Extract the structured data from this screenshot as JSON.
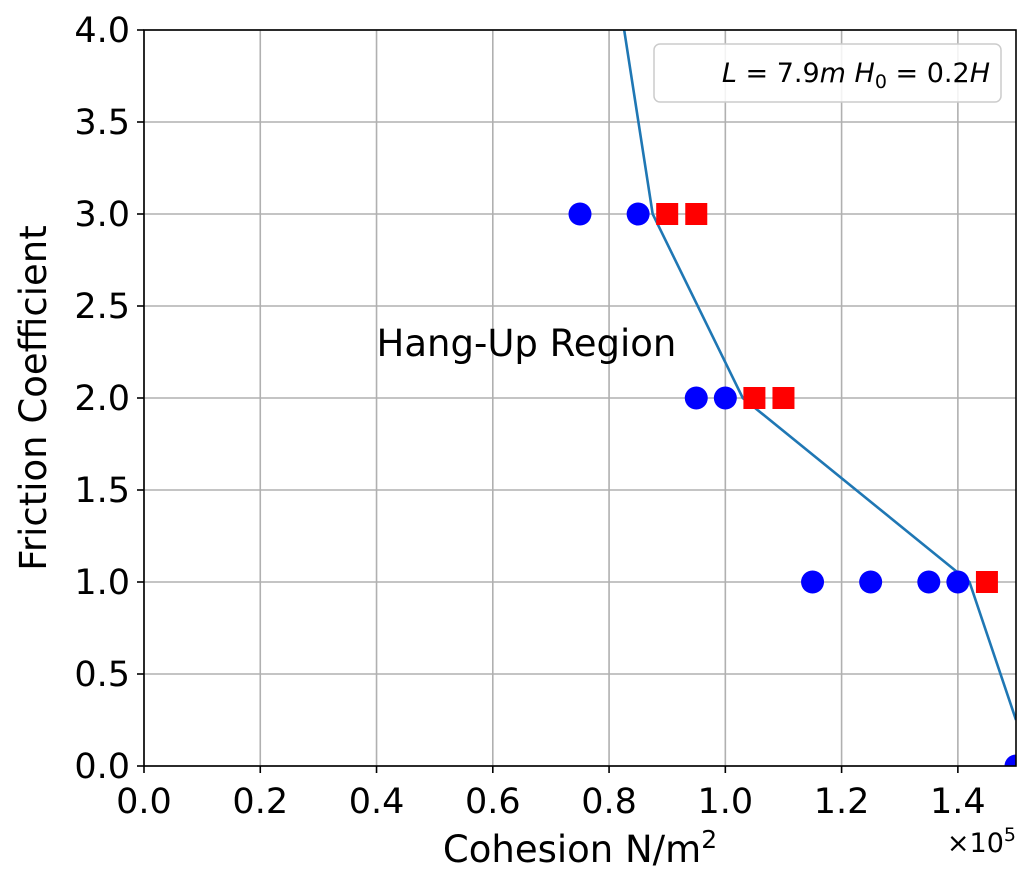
{
  "chart_data": {
    "type": "scatter",
    "xlabel_main": "Cohesion N/m",
    "xlabel_sup": "2",
    "ylabel": "Friction Coefficient",
    "x_multiplier_base": "×10",
    "x_multiplier_exp": "5",
    "xlim": [
      0,
      1.5
    ],
    "ylim": [
      0,
      4.0
    ],
    "x_ticks": [
      0.0,
      0.2,
      0.4,
      0.6,
      0.8,
      1.0,
      1.2,
      1.4
    ],
    "x_tick_labels": [
      "0.0",
      "0.2",
      "0.4",
      "0.6",
      "0.8",
      "1.0",
      "1.2",
      "1.4"
    ],
    "y_ticks": [
      0.0,
      0.5,
      1.0,
      1.5,
      2.0,
      2.5,
      3.0,
      3.5,
      4.0
    ],
    "y_tick_labels": [
      "0.0",
      "0.5",
      "1.0",
      "1.5",
      "2.0",
      "2.5",
      "3.0",
      "3.5",
      "4.0"
    ],
    "grid": true,
    "legend_placement": "top-right",
    "legend": {
      "L_symbol": "L",
      "L_value": " = 7.9",
      "L_unit": "m",
      "H_symbol": "H",
      "H_sub": "0",
      "H_value": " = 0.2",
      "H_symbol2": "H"
    },
    "annotation": {
      "text": "Hang-Up Region",
      "x": 0.4,
      "y": 2.3
    },
    "series": [
      {
        "marker": "circle",
        "color": "#0000ff",
        "x": [
          0.75,
          0.85,
          0.95,
          1.0,
          1.15,
          1.25,
          1.35,
          1.4,
          1.5
        ],
        "y": [
          3.0,
          3.0,
          2.0,
          2.0,
          1.0,
          1.0,
          1.0,
          1.0,
          0.0
        ]
      },
      {
        "marker": "square",
        "color": "#ff0000",
        "x": [
          0.9,
          0.95,
          1.05,
          1.1,
          1.45
        ],
        "y": [
          3.0,
          3.0,
          2.0,
          2.0,
          1.0
        ]
      },
      {
        "marker": "line",
        "color": "#1f77b4",
        "x": [
          0.826,
          0.875,
          1.03,
          1.42,
          1.5
        ],
        "y": [
          4.0,
          3.0,
          2.0,
          1.0,
          0.25
        ]
      }
    ]
  }
}
